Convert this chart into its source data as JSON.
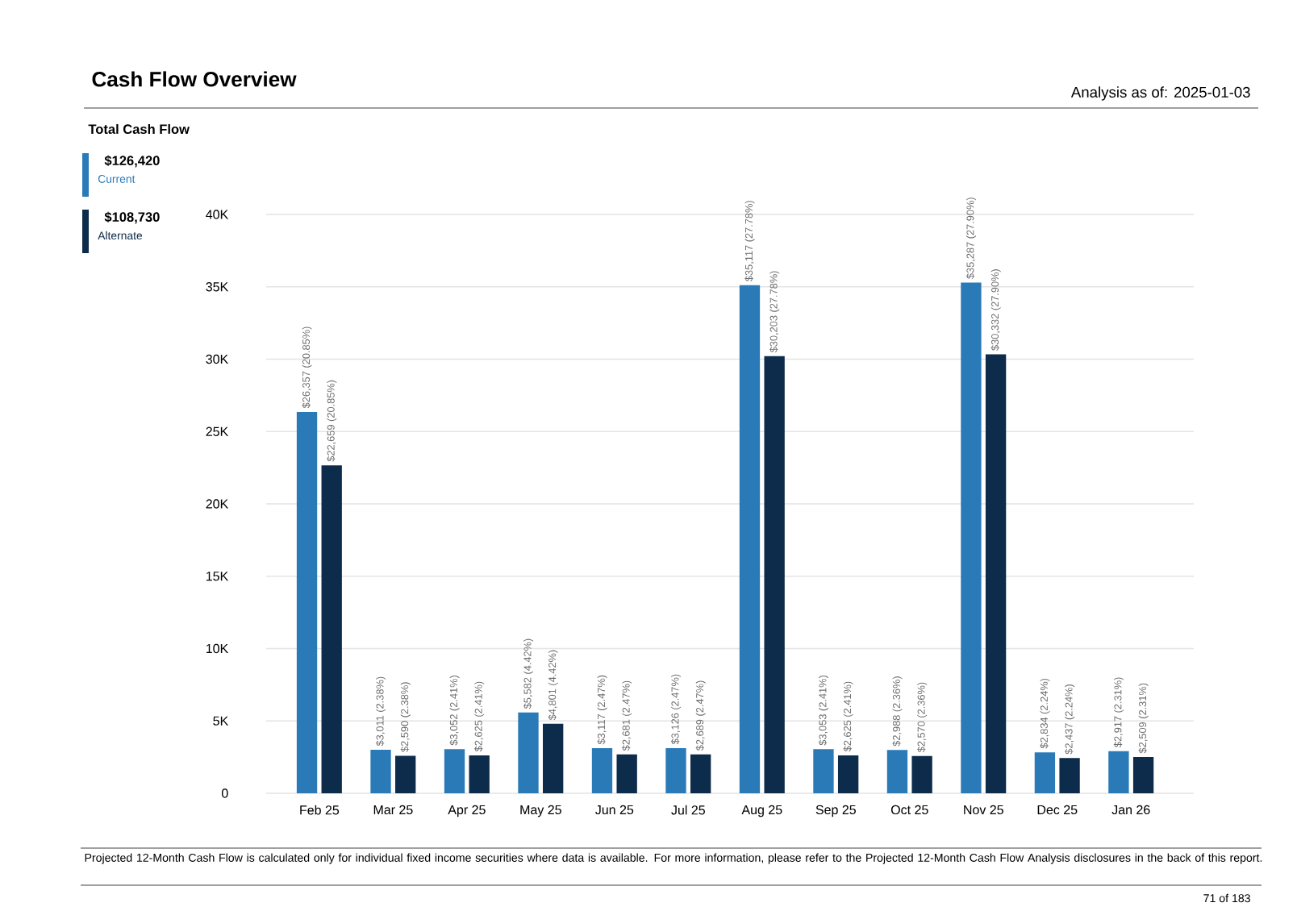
{
  "chart_data": {
    "type": "bar",
    "title": "Cash Flow Overview",
    "legend_title": "Total Cash Flow",
    "categories": [
      "Feb 25",
      "Mar 25",
      "Apr 25",
      "May 25",
      "Jun 25",
      "Jul 25",
      "Aug 25",
      "Sep 25",
      "Oct 25",
      "Nov 25",
      "Dec 25",
      "Jan 26"
    ],
    "series": [
      {
        "name": "Current",
        "color": "#2a7ab8",
        "values": [
          26357,
          3011,
          3052,
          5582,
          3117,
          3126,
          35117,
          3053,
          2988,
          35287,
          2834,
          2917
        ],
        "value_labels": [
          "$26,357 (20.85%)",
          "$3,011 (2.38%)",
          "$3,052 (2.41%)",
          "$5,582 (4.42%)",
          "$3,117 (2.47%)",
          "$3,126 (2.47%)",
          "$35,117 (27.78%)",
          "$3,053 (2.41%)",
          "$2,988 (2.36%)",
          "$35,287 (27.90%)",
          "$2,834 (2.24%)",
          "$2,917 (2.31%)"
        ]
      },
      {
        "name": "Alternate",
        "color": "#0d2b4a",
        "values": [
          22659,
          2590,
          2625,
          4801,
          2681,
          2689,
          30203,
          2625,
          2570,
          30332,
          2437,
          2509
        ],
        "value_labels": [
          "$22,659 (20.85%)",
          "$2,590 (2.38%)",
          "$2,625 (2.41%)",
          "$4,801 (4.42%)",
          "$2,681 (2.47%)",
          "$2,689 (2.47%)",
          "$30,203 (27.78%)",
          "$2,625 (2.41%)",
          "$2,570 (2.36%)",
          "$30,332 (27.90%)",
          "$2,437 (2.24%)",
          "$2,509 (2.31%)"
        ]
      }
    ],
    "ylim": [
      0,
      40000
    ],
    "yticks": [
      0,
      {
        "value": 5000,
        "label": "5K"
      },
      {
        "value": 10000,
        "label": "10K"
      },
      {
        "value": 15000,
        "label": "15K"
      },
      {
        "value": 20000,
        "label": "20K"
      },
      {
        "value": 25000,
        "label": "25K"
      },
      {
        "value": 30000,
        "label": "30K"
      },
      {
        "value": 35000,
        "label": "35K"
      },
      {
        "value": 40000,
        "label": "40K"
      }
    ],
    "grid": "y",
    "legend": "left",
    "annotations": [
      "$126,420",
      "$108,730",
      "Analysis as of:  2025-01-03",
      "Projected 12-Month Cash Flow is calculated only for individual fixed income securities where data is available. For more information, please refer to the Projected 12-Month Cash Flow Analysis disclosures in the back of this report.",
      "71 of 183"
    ]
  }
}
